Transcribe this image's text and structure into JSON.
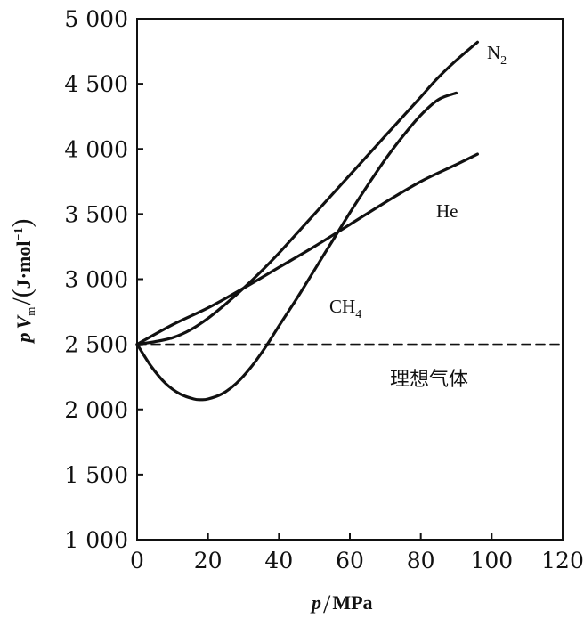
{
  "chart_data": {
    "type": "line",
    "title": "",
    "xlabel": "p/MPa",
    "ylabel": "pVm/(J·mol⁻¹)",
    "xlim": [
      0,
      120
    ],
    "ylim": [
      1000,
      5000
    ],
    "xticks": [
      0,
      20,
      40,
      60,
      80,
      100,
      120
    ],
    "yticks": [
      1000,
      1500,
      2000,
      2500,
      3000,
      3500,
      4000,
      4500,
      5000
    ],
    "xtick_labels": [
      "0",
      "20",
      "40",
      "60",
      "80",
      "100",
      "120"
    ],
    "ytick_labels": [
      "1 000",
      "1 500",
      "2 000",
      "2 500",
      "3 000",
      "3 500",
      "4 000",
      "4 500",
      "5 000"
    ],
    "axis_title": {
      "x_var": "p",
      "x_unit": "MPa",
      "y_var_p": "p",
      "y_var_V": "V",
      "y_sub": "m",
      "y_unit": "J·mol",
      "y_sup": "−1"
    },
    "series": [
      {
        "name": "N2",
        "label_main": "N",
        "label_sub": "2",
        "x": [
          0,
          5,
          10,
          15,
          20,
          25,
          30,
          35,
          40,
          45,
          50,
          55,
          60,
          65,
          70,
          75,
          80,
          85,
          90,
          96
        ],
        "y": [
          2500,
          2520,
          2550,
          2610,
          2700,
          2810,
          2930,
          3060,
          3200,
          3350,
          3500,
          3650,
          3800,
          3950,
          4100,
          4250,
          4400,
          4550,
          4680,
          4820
        ]
      },
      {
        "name": "He",
        "label_main": "He",
        "label_sub": "",
        "x": [
          0,
          10,
          20,
          30,
          40,
          50,
          60,
          70,
          80,
          90,
          96
        ],
        "y": [
          2500,
          2650,
          2780,
          2930,
          3090,
          3250,
          3420,
          3590,
          3750,
          3880,
          3960
        ]
      },
      {
        "name": "CH4",
        "label_main": "CH",
        "label_sub": "4",
        "x": [
          0,
          4,
          8,
          12,
          16,
          18,
          20,
          24,
          28,
          32,
          36,
          40,
          45,
          50,
          55,
          60,
          65,
          70,
          75,
          80,
          85,
          90
        ],
        "y": [
          2500,
          2330,
          2200,
          2120,
          2080,
          2075,
          2080,
          2120,
          2200,
          2320,
          2470,
          2640,
          2850,
          3070,
          3290,
          3510,
          3720,
          3920,
          4100,
          4260,
          4380,
          4430
        ]
      },
      {
        "name": "理想气体",
        "label_main": "理想气体",
        "label_sub": "",
        "dashed": true,
        "x": [
          0,
          120
        ],
        "y": [
          2500,
          2500
        ]
      }
    ]
  }
}
